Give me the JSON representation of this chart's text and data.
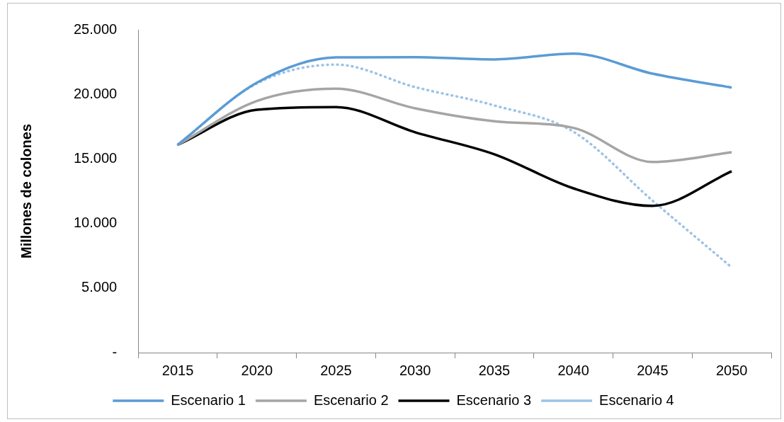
{
  "chart_data": {
    "type": "line",
    "ylabel": "Millones de colones",
    "categories": [
      "2015",
      "2020",
      "2025",
      "2030",
      "2035",
      "2040",
      "2045",
      "2050"
    ],
    "series": [
      {
        "name": "Escenario 1",
        "color": "#5b9bd5",
        "line_style": "solid",
        "values": [
          16100,
          20900,
          22860,
          22880,
          22700,
          23150,
          21600,
          20520
        ]
      },
      {
        "name": "Escenario 2",
        "color": "#a5a5a5",
        "line_style": "solid",
        "values": [
          16100,
          19480,
          20430,
          18910,
          17910,
          17400,
          14760,
          15510
        ]
      },
      {
        "name": "Escenario 3",
        "color": "#000000",
        "line_style": "solid",
        "values": [
          16100,
          18800,
          19010,
          17060,
          15360,
          12720,
          11360,
          14040
        ]
      },
      {
        "name": "Escenario 4",
        "color": "#9dc3e6",
        "line_style": "dotted",
        "values": [
          16100,
          20840,
          22300,
          20560,
          19140,
          17100,
          11770,
          6600
        ]
      }
    ],
    "ylim": [
      0,
      25000
    ],
    "yticks": [
      {
        "value": 0,
        "label": "-"
      },
      {
        "value": 5000,
        "label": "5.000"
      },
      {
        "value": 10000,
        "label": "10.000"
      },
      {
        "value": 15000,
        "label": "15.000"
      },
      {
        "value": 20000,
        "label": "20.000"
      },
      {
        "value": 25000,
        "label": "25.000"
      }
    ],
    "marker": "none",
    "legend": "bottom"
  }
}
